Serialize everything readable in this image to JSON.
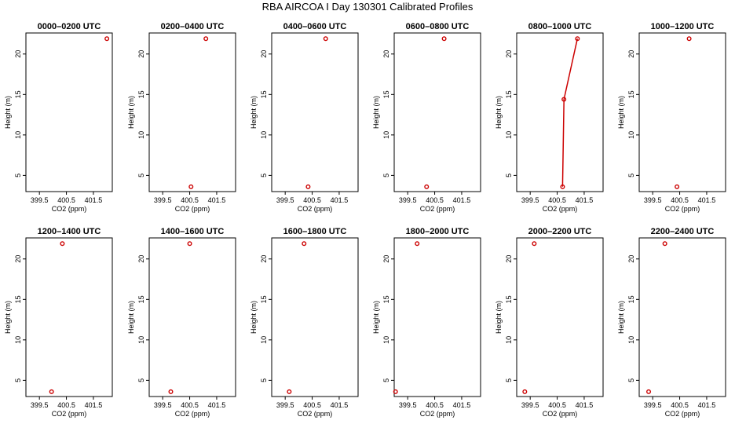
{
  "page": {
    "title": "RBA AIRCOA I  Day 130301  Calibrated Profiles"
  },
  "chart_data": {
    "type": "line",
    "xlabel": "CO2 (ppm)",
    "ylabel": "Height (m)",
    "xlim": [
      399.0,
      402.2
    ],
    "ylim": [
      3.0,
      22.6
    ],
    "xticks": [
      399.5,
      400.5,
      401.5
    ],
    "xtick_labels": [
      "399.5",
      "400.5",
      "401.5"
    ],
    "yticks": [
      5,
      10,
      15,
      20
    ],
    "ytick_labels": [
      "5",
      "10",
      "15",
      "20"
    ],
    "marker_color": "#cc0000",
    "line_color": "#cc0000",
    "grid": false,
    "panels": [
      {
        "title": "0000–0200 UTC",
        "points": [
          {
            "x": 402.0,
            "y": 21.9
          }
        ]
      },
      {
        "title": "0200–0400 UTC",
        "points": [
          {
            "x": 400.55,
            "y": 3.6
          },
          {
            "x": 401.1,
            "y": 21.9
          }
        ]
      },
      {
        "title": "0400–0600 UTC",
        "points": [
          {
            "x": 400.35,
            "y": 3.6
          },
          {
            "x": 401.0,
            "y": 21.9
          }
        ]
      },
      {
        "title": "0600–0800 UTC",
        "points": [
          {
            "x": 400.2,
            "y": 3.6
          },
          {
            "x": 400.85,
            "y": 21.9
          }
        ]
      },
      {
        "title": "0800–1000 UTC",
        "points": [
          {
            "x": 400.7,
            "y": 3.6
          },
          {
            "x": 400.75,
            "y": 14.4
          },
          {
            "x": 401.25,
            "y": 21.9
          }
        ],
        "line": true
      },
      {
        "title": "1000–1200 UTC",
        "points": [
          {
            "x": 400.4,
            "y": 3.6
          },
          {
            "x": 400.85,
            "y": 21.9
          }
        ]
      },
      {
        "title": "1200–1400 UTC",
        "points": [
          {
            "x": 399.95,
            "y": 3.6
          },
          {
            "x": 400.35,
            "y": 21.9
          }
        ]
      },
      {
        "title": "1400–1600 UTC",
        "points": [
          {
            "x": 399.8,
            "y": 3.6
          },
          {
            "x": 400.5,
            "y": 21.9
          }
        ]
      },
      {
        "title": "1600–1800 UTC",
        "points": [
          {
            "x": 399.65,
            "y": 3.6
          },
          {
            "x": 400.2,
            "y": 21.9
          }
        ]
      },
      {
        "title": "1800–2000 UTC",
        "points": [
          {
            "x": 399.05,
            "y": 3.6
          },
          {
            "x": 399.85,
            "y": 21.9
          }
        ]
      },
      {
        "title": "2000–2200 UTC",
        "points": [
          {
            "x": 399.3,
            "y": 3.6
          },
          {
            "x": 399.65,
            "y": 21.9
          }
        ]
      },
      {
        "title": "2200–2400 UTC",
        "points": [
          {
            "x": 399.35,
            "y": 3.6
          },
          {
            "x": 399.95,
            "y": 21.9
          }
        ]
      }
    ]
  }
}
